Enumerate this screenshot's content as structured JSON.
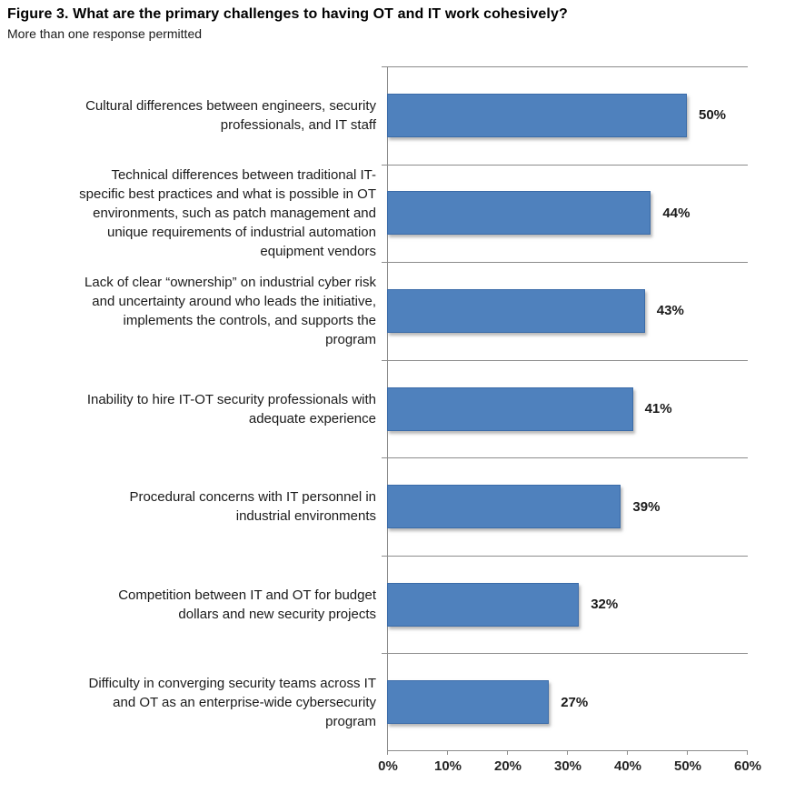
{
  "header": {
    "title": "Figure 3. What are the primary challenges to having OT and IT work cohesively?",
    "subtitle": "More than one response permitted"
  },
  "chart_data": {
    "type": "bar",
    "orientation": "horizontal",
    "title": "Figure 3. What are the primary challenges to having OT and IT work cohesively?",
    "subtitle": "More than one response permitted",
    "categories": [
      "Cultural differences between engineers, security\nprofessionals, and IT staff",
      "Technical differences between traditional IT-\nspecific best practices and what is possible in OT\nenvironments, such as patch management and\nunique requirements of industrial automation\nequipment vendors",
      "Lack of clear “ownership” on industrial cyber risk\nand uncertainty around who leads the initiative,\nimplements the controls, and supports the\nprogram",
      "Inability to hire IT-OT security professionals with\nadequate experience",
      "Procedural concerns with IT personnel in\nindustrial environments",
      "Competition between IT and OT for budget\ndollars and new security projects",
      "Difficulty in converging security teams across IT\nand OT as an enterprise-wide cybersecurity\nprogram"
    ],
    "values": [
      50,
      44,
      43,
      41,
      39,
      32,
      27
    ],
    "value_labels": [
      "50%",
      "44%",
      "43%",
      "41%",
      "39%",
      "32%",
      "27%"
    ],
    "x_ticks": [
      "0%",
      "10%",
      "20%",
      "30%",
      "40%",
      "50%",
      "60%"
    ],
    "x_tick_values": [
      0,
      10,
      20,
      30,
      40,
      50,
      60
    ],
    "xlim": [
      0,
      60
    ],
    "xlabel": "",
    "ylabel": "",
    "legend": "none",
    "grid": "category-separator-lines",
    "bar_color": "#4f81bd",
    "bar_border_color": "#3a6ba8",
    "axis_color": "#8c8c8c"
  }
}
